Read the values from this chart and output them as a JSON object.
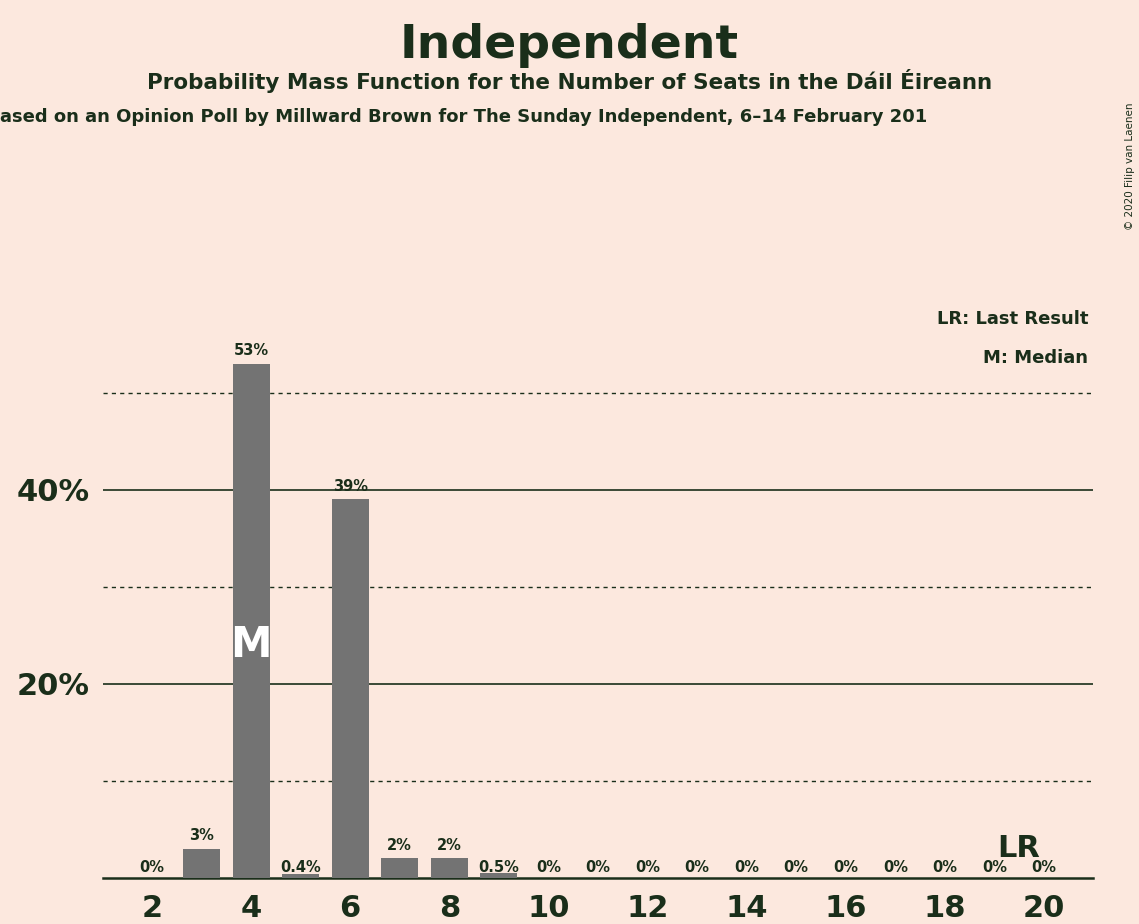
{
  "title": "Independent",
  "subtitle": "Probability Mass Function for the Number of Seats in the Dáil Éireann",
  "source_line": "ased on an Opinion Poll by Millward Brown for The Sunday Independent, 6–14 February 201",
  "copyright": "© 2020 Filip van Laenen",
  "background_color": "#fce8de",
  "bar_color": "#737373",
  "text_color": "#1a2e1a",
  "seats": [
    2,
    3,
    4,
    5,
    6,
    7,
    8,
    9,
    10,
    11,
    12,
    13,
    14,
    15,
    16,
    17,
    18,
    19,
    20
  ],
  "values": [
    0.0,
    3.0,
    53.0,
    0.4,
    39.0,
    2.0,
    2.0,
    0.5,
    0.0,
    0.0,
    0.0,
    0.0,
    0.0,
    0.0,
    0.0,
    0.0,
    0.0,
    0.0,
    0.0
  ],
  "bar_labels": [
    "0%",
    "3%",
    "53%",
    "0.4%",
    "39%",
    "2%",
    "2%",
    "0.5%",
    "0%",
    "0%",
    "0%",
    "0%",
    "0%",
    "0%",
    "0%",
    "0%",
    "0%",
    "0%",
    "0%"
  ],
  "median_seat": 4,
  "lr_seat": 19,
  "xticks": [
    2,
    4,
    6,
    8,
    10,
    12,
    14,
    16,
    18,
    20
  ],
  "solid_gridlines": [
    20,
    40
  ],
  "dotted_gridlines": [
    10,
    30,
    50
  ],
  "legend_lr_label": "LR: Last Result",
  "legend_m_label": "M: Median",
  "ylim_max": 60
}
